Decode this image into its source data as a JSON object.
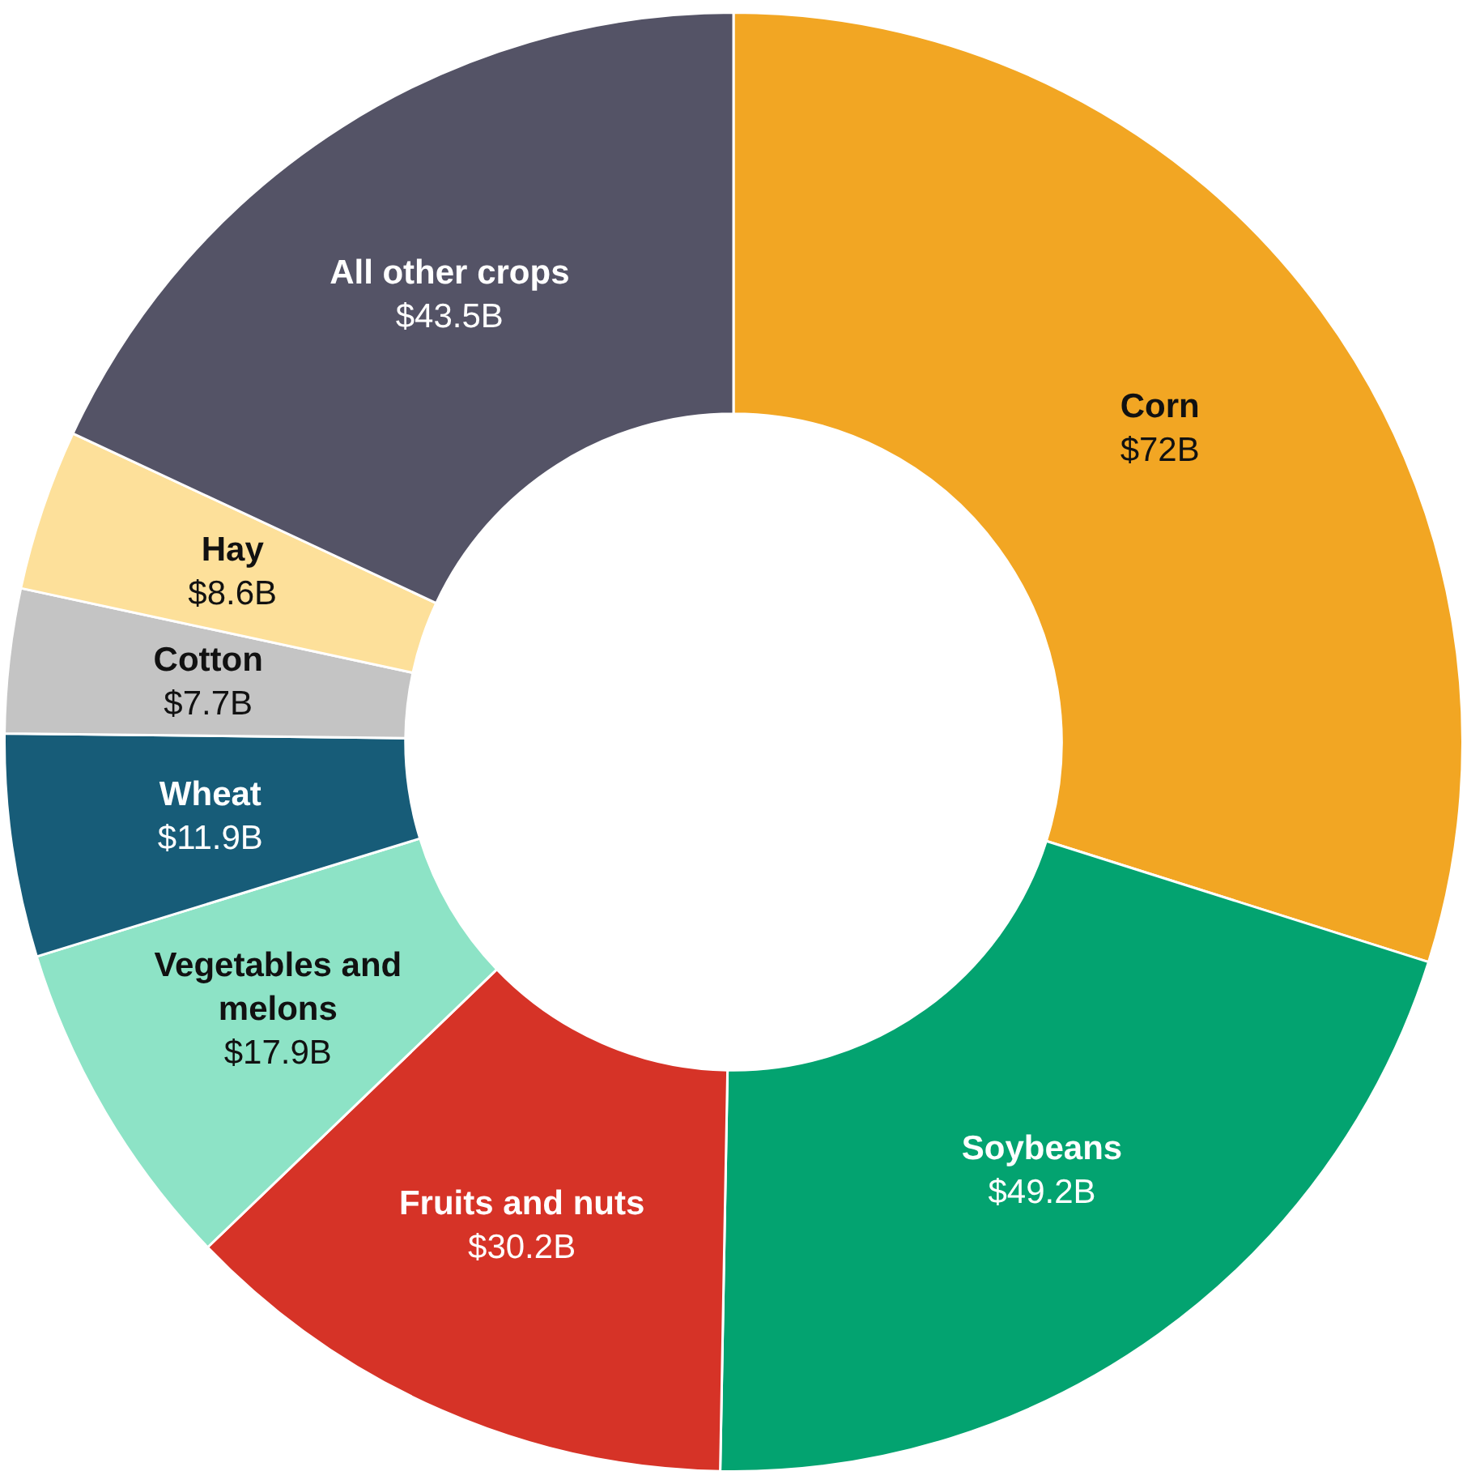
{
  "chart_data": {
    "type": "donut",
    "categories": [
      "Corn",
      "Soybeans",
      "Fruits and nuts",
      "Vegetables and melons",
      "Wheat",
      "Cotton",
      "Hay",
      "All other crops"
    ],
    "values": [
      72,
      49.2,
      30.2,
      17.9,
      11.9,
      7.7,
      8.6,
      43.5
    ],
    "value_labels": [
      "$72B",
      "$49.2B",
      "$30.2B",
      "$17.9B",
      "$11.9B",
      "$7.7B",
      "$8.6B",
      "$43.5B"
    ],
    "colors": [
      "#f2a623",
      "#03a370",
      "#d63327",
      "#8de3c6",
      "#175c78",
      "#c4c4c4",
      "#fde09a",
      "#545366"
    ],
    "legend": false
  }
}
